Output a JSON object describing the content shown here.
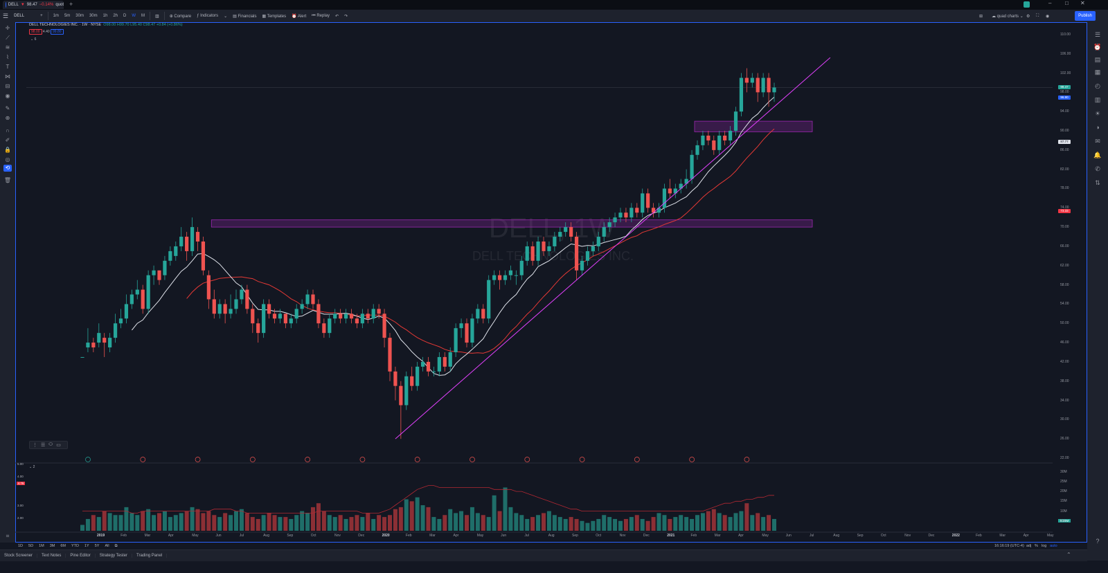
{
  "tab": {
    "symbol": "DELL",
    "price": "98.47",
    "change": "−0.14%",
    "suffix": "quot"
  },
  "toolbar": {
    "symbol": "DELL",
    "intervals": [
      "1m",
      "5m",
      "30m",
      "30m",
      "1h",
      "2h",
      "D",
      "W",
      "M"
    ],
    "compare": "Compare",
    "indicators": "Indicators",
    "financials": "Financials",
    "templates": "Templates",
    "alert": "Alert",
    "replay": "Replay",
    "layout_name": "quad charts",
    "publish": "Publish"
  },
  "legend": {
    "title": "DELL TECHNOLOGIES INC. · 1W · NYSE",
    "ohlc": "O98.00 H99.70 L95.40 C98.47 +0.84 (+0.86%)",
    "box1": "98.00",
    "box_val": "4.40",
    "box2": "99.80"
  },
  "watermark": {
    "symbol": "DELL, 1W",
    "name": "DELL TECHNOLOGIES INC."
  },
  "colors": {
    "up": "#26a69a",
    "down": "#ef5350",
    "accent": "#2962ff",
    "zone": "#9c27b0",
    "ma_fast": "#e0e3eb",
    "ma_slow": "#e53935"
  },
  "price_axis": [
    "110.00",
    "106.00",
    "102.00",
    "98.00",
    "94.00",
    "90.00",
    "86.00",
    "82.00",
    "78.00",
    "74.00",
    "70.00",
    "66.00",
    "62.00",
    "58.00",
    "54.00",
    "50.00",
    "46.00",
    "42.00",
    "38.00",
    "34.00",
    "30.00",
    "26.00",
    "22.00"
  ],
  "price_tags": [
    {
      "label": "98.47",
      "color": "#26a69a"
    },
    {
      "label": "96.90",
      "color": "#2962ff"
    },
    {
      "label": "87.77",
      "color": "#e0e3eb"
    },
    {
      "label": "73.33",
      "color": "#f23645"
    }
  ],
  "time_axis": [
    "2019",
    "Feb",
    "Mar",
    "Apr",
    "May",
    "Jun",
    "Jul",
    "Aug",
    "Sep",
    "Oct",
    "Nov",
    "Dec",
    "2020",
    "Feb",
    "Mar",
    "Apr",
    "May",
    "Jun",
    "Jul",
    "Aug",
    "Sep",
    "Oct",
    "Nov",
    "Dec",
    "2021",
    "Feb",
    "Mar",
    "Apr",
    "May",
    "Jun",
    "Jul",
    "Aug",
    "Sep",
    "Oct",
    "Nov",
    "Dec",
    "2022",
    "Feb",
    "Mar",
    "Apr",
    "May"
  ],
  "volume_axis": [
    "30M",
    "25M",
    "20M",
    "15M",
    "10M",
    "5M"
  ],
  "volume_pane": {
    "legend": "2",
    "scale": [
      "5.00",
      "4.00",
      "3.00",
      "2.00"
    ],
    "tag": "4.76",
    "last": "8.24M"
  },
  "range_bar": {
    "ranges": [
      "1D",
      "5D",
      "1M",
      "3M",
      "6M",
      "YTD",
      "1Y",
      "5Y",
      "All"
    ],
    "time": "16:16:19 (UTC-4)",
    "opts": [
      "adj",
      "%",
      "log",
      "auto"
    ]
  },
  "bottom_tabs": [
    "Stock Screener",
    "Text Notes",
    "Pine Editor",
    "Strategy Tester",
    "Trading Panel"
  ],
  "chart_data": {
    "type": "candlestick",
    "title": "",
    "interval": "1W",
    "ylim": [
      22,
      112
    ],
    "candles": [
      {
        "o": 43,
        "c": 43,
        "h": 43,
        "l": 43
      },
      {
        "o": 45,
        "c": 46,
        "h": 49,
        "l": 44
      },
      {
        "o": 46,
        "c": 45,
        "h": 47,
        "l": 44
      },
      {
        "o": 46,
        "c": 48,
        "h": 50,
        "l": 45
      },
      {
        "o": 47,
        "c": 46,
        "h": 48,
        "l": 43
      },
      {
        "o": 45,
        "c": 47,
        "h": 48,
        "l": 44
      },
      {
        "o": 47,
        "c": 50,
        "h": 52,
        "l": 46
      },
      {
        "o": 50,
        "c": 51,
        "h": 53,
        "l": 49
      },
      {
        "o": 51,
        "c": 54,
        "h": 56,
        "l": 50
      },
      {
        "o": 54,
        "c": 56,
        "h": 57,
        "l": 53
      },
      {
        "o": 56,
        "c": 57,
        "h": 59,
        "l": 55
      },
      {
        "o": 57,
        "c": 53,
        "h": 58,
        "l": 52
      },
      {
        "o": 53,
        "c": 60,
        "h": 61,
        "l": 52
      },
      {
        "o": 60,
        "c": 61,
        "h": 62,
        "l": 58
      },
      {
        "o": 61,
        "c": 59,
        "h": 61,
        "l": 58
      },
      {
        "o": 60,
        "c": 63,
        "h": 64,
        "l": 59
      },
      {
        "o": 63,
        "c": 65,
        "h": 66,
        "l": 62
      },
      {
        "o": 64,
        "c": 66,
        "h": 67,
        "l": 63
      },
      {
        "o": 66,
        "c": 68,
        "h": 70,
        "l": 65
      },
      {
        "o": 68,
        "c": 65,
        "h": 69,
        "l": 63
      },
      {
        "o": 65,
        "c": 70,
        "h": 72,
        "l": 64
      },
      {
        "o": 69,
        "c": 67,
        "h": 70,
        "l": 65
      },
      {
        "o": 67,
        "c": 61,
        "h": 68,
        "l": 60
      },
      {
        "o": 60,
        "c": 55,
        "h": 61,
        "l": 53
      },
      {
        "o": 55,
        "c": 52,
        "h": 57,
        "l": 51
      },
      {
        "o": 52,
        "c": 54,
        "h": 55,
        "l": 51
      },
      {
        "o": 54,
        "c": 52,
        "h": 55,
        "l": 50
      },
      {
        "o": 52,
        "c": 53,
        "h": 56,
        "l": 51
      },
      {
        "o": 53,
        "c": 55,
        "h": 57,
        "l": 52
      },
      {
        "o": 55,
        "c": 57,
        "h": 58,
        "l": 54
      },
      {
        "o": 57,
        "c": 53,
        "h": 58,
        "l": 52
      },
      {
        "o": 53,
        "c": 50,
        "h": 54,
        "l": 48
      },
      {
        "o": 50,
        "c": 48,
        "h": 51,
        "l": 46
      },
      {
        "o": 48,
        "c": 54,
        "h": 55,
        "l": 47
      },
      {
        "o": 54,
        "c": 52,
        "h": 55,
        "l": 51
      },
      {
        "o": 52,
        "c": 51,
        "h": 53,
        "l": 50
      },
      {
        "o": 51,
        "c": 52,
        "h": 53,
        "l": 50
      },
      {
        "o": 52,
        "c": 50,
        "h": 52,
        "l": 49
      },
      {
        "o": 50,
        "c": 51,
        "h": 52,
        "l": 49
      },
      {
        "o": 51,
        "c": 53,
        "h": 54,
        "l": 50
      },
      {
        "o": 53,
        "c": 54,
        "h": 55,
        "l": 52
      },
      {
        "o": 54,
        "c": 56,
        "h": 57,
        "l": 53
      },
      {
        "o": 56,
        "c": 54,
        "h": 57,
        "l": 53
      },
      {
        "o": 54,
        "c": 50,
        "h": 55,
        "l": 49
      },
      {
        "o": 50,
        "c": 48,
        "h": 51,
        "l": 47
      },
      {
        "o": 48,
        "c": 51,
        "h": 52,
        "l": 47
      },
      {
        "o": 51,
        "c": 52,
        "h": 53,
        "l": 50
      },
      {
        "o": 52,
        "c": 51,
        "h": 53,
        "l": 50
      },
      {
        "o": 51,
        "c": 52,
        "h": 53,
        "l": 50
      },
      {
        "o": 52,
        "c": 51,
        "h": 53,
        "l": 50
      },
      {
        "o": 51,
        "c": 50,
        "h": 52,
        "l": 49
      },
      {
        "o": 50,
        "c": 52,
        "h": 53,
        "l": 49
      },
      {
        "o": 52,
        "c": 51,
        "h": 53,
        "l": 50
      },
      {
        "o": 51,
        "c": 53,
        "h": 54,
        "l": 50
      },
      {
        "o": 53,
        "c": 52,
        "h": 54,
        "l": 51
      },
      {
        "o": 52,
        "c": 47,
        "h": 53,
        "l": 45
      },
      {
        "o": 47,
        "c": 40,
        "h": 48,
        "l": 38
      },
      {
        "o": 40,
        "c": 37,
        "h": 41,
        "l": 34
      },
      {
        "o": 37,
        "c": 33,
        "h": 38,
        "l": 26
      },
      {
        "o": 33,
        "c": 39,
        "h": 40,
        "l": 32
      },
      {
        "o": 39,
        "c": 37,
        "h": 41,
        "l": 36
      },
      {
        "o": 37,
        "c": 41,
        "h": 42,
        "l": 36
      },
      {
        "o": 41,
        "c": 42,
        "h": 43,
        "l": 40
      },
      {
        "o": 42,
        "c": 40,
        "h": 43,
        "l": 39
      },
      {
        "o": 40,
        "c": 40,
        "h": 41,
        "l": 39
      },
      {
        "o": 40,
        "c": 43,
        "h": 44,
        "l": 39
      },
      {
        "o": 43,
        "c": 41,
        "h": 44,
        "l": 40
      },
      {
        "o": 41,
        "c": 44,
        "h": 45,
        "l": 40
      },
      {
        "o": 44,
        "c": 49,
        "h": 50,
        "l": 43
      },
      {
        "o": 49,
        "c": 50,
        "h": 51,
        "l": 47
      },
      {
        "o": 50,
        "c": 46,
        "h": 51,
        "l": 45
      },
      {
        "o": 46,
        "c": 51,
        "h": 52,
        "l": 45
      },
      {
        "o": 51,
        "c": 53,
        "h": 54,
        "l": 50
      },
      {
        "o": 53,
        "c": 51,
        "h": 54,
        "l": 50
      },
      {
        "o": 51,
        "c": 59,
        "h": 60,
        "l": 50
      },
      {
        "o": 59,
        "c": 60,
        "h": 61,
        "l": 58
      },
      {
        "o": 60,
        "c": 59,
        "h": 61,
        "l": 57
      },
      {
        "o": 59,
        "c": 60,
        "h": 61,
        "l": 58
      },
      {
        "o": 60,
        "c": 61,
        "h": 62,
        "l": 59
      },
      {
        "o": 60,
        "c": 60,
        "h": 61,
        "l": 58
      },
      {
        "o": 60,
        "c": 63,
        "h": 64,
        "l": 59
      },
      {
        "o": 63,
        "c": 66,
        "h": 67,
        "l": 62
      },
      {
        "o": 66,
        "c": 63,
        "h": 67,
        "l": 62
      },
      {
        "o": 63,
        "c": 67,
        "h": 68,
        "l": 62
      },
      {
        "o": 67,
        "c": 65,
        "h": 68,
        "l": 64
      },
      {
        "o": 65,
        "c": 66,
        "h": 67,
        "l": 64
      },
      {
        "o": 66,
        "c": 68,
        "h": 69,
        "l": 65
      },
      {
        "o": 68,
        "c": 69,
        "h": 70,
        "l": 67
      },
      {
        "o": 69,
        "c": 70,
        "h": 71,
        "l": 68
      },
      {
        "o": 70,
        "c": 68,
        "h": 71,
        "l": 67
      },
      {
        "o": 68,
        "c": 61,
        "h": 69,
        "l": 59
      },
      {
        "o": 61,
        "c": 63,
        "h": 64,
        "l": 60
      },
      {
        "o": 63,
        "c": 65,
        "h": 66,
        "l": 62
      },
      {
        "o": 65,
        "c": 66,
        "h": 67,
        "l": 64
      },
      {
        "o": 66,
        "c": 68,
        "h": 69,
        "l": 65
      },
      {
        "o": 68,
        "c": 70,
        "h": 71,
        "l": 67
      },
      {
        "o": 70,
        "c": 71,
        "h": 72,
        "l": 69
      },
      {
        "o": 71,
        "c": 72,
        "h": 73,
        "l": 70
      },
      {
        "o": 72,
        "c": 73,
        "h": 74,
        "l": 71
      },
      {
        "o": 73,
        "c": 72,
        "h": 74,
        "l": 71
      },
      {
        "o": 72,
        "c": 74,
        "h": 75,
        "l": 71
      },
      {
        "o": 74,
        "c": 73,
        "h": 75,
        "l": 72
      },
      {
        "o": 73,
        "c": 77,
        "h": 78,
        "l": 72
      },
      {
        "o": 77,
        "c": 74,
        "h": 78,
        "l": 73
      },
      {
        "o": 74,
        "c": 73,
        "h": 75,
        "l": 72
      },
      {
        "o": 73,
        "c": 74,
        "h": 75,
        "l": 72
      },
      {
        "o": 74,
        "c": 78,
        "h": 79,
        "l": 73
      },
      {
        "o": 78,
        "c": 77,
        "h": 80,
        "l": 76
      },
      {
        "o": 77,
        "c": 78,
        "h": 79,
        "l": 76
      },
      {
        "o": 78,
        "c": 79,
        "h": 80,
        "l": 77
      },
      {
        "o": 79,
        "c": 80,
        "h": 82,
        "l": 78
      },
      {
        "o": 80,
        "c": 85,
        "h": 86,
        "l": 79
      },
      {
        "o": 85,
        "c": 87,
        "h": 88,
        "l": 84
      },
      {
        "o": 87,
        "c": 89,
        "h": 90,
        "l": 86
      },
      {
        "o": 89,
        "c": 88,
        "h": 90,
        "l": 87
      },
      {
        "o": 88,
        "c": 86,
        "h": 89,
        "l": 85
      },
      {
        "o": 86,
        "c": 89,
        "h": 90,
        "l": 85
      },
      {
        "o": 89,
        "c": 88,
        "h": 90,
        "l": 87
      },
      {
        "o": 88,
        "c": 90,
        "h": 91,
        "l": 87
      },
      {
        "o": 90,
        "c": 94,
        "h": 95,
        "l": 89
      },
      {
        "o": 94,
        "c": 101,
        "h": 102,
        "l": 93
      },
      {
        "o": 101,
        "c": 100,
        "h": 103,
        "l": 98
      },
      {
        "o": 100,
        "c": 101,
        "h": 102,
        "l": 99
      },
      {
        "o": 101,
        "c": 98,
        "h": 102,
        "l": 96
      },
      {
        "o": 98,
        "c": 101,
        "h": 102,
        "l": 97
      },
      {
        "o": 101,
        "c": 98,
        "h": 102,
        "l": 95
      },
      {
        "o": 98,
        "c": 99,
        "h": 100,
        "l": 96
      }
    ],
    "volume_M": [
      3,
      6,
      8,
      7,
      10,
      9,
      8,
      8,
      12,
      9,
      8,
      10,
      11,
      8,
      9,
      10,
      7,
      8,
      9,
      10,
      12,
      11,
      9,
      10,
      8,
      7,
      9,
      8,
      10,
      11,
      9,
      7,
      6,
      8,
      9,
      8,
      7,
      7,
      6,
      8,
      10,
      9,
      12,
      14,
      10,
      8,
      7,
      8,
      6,
      7,
      8,
      7,
      9,
      6,
      8,
      7,
      8,
      11,
      12,
      16,
      15,
      17,
      13,
      12,
      7,
      6,
      8,
      11,
      9,
      10,
      8,
      12,
      9,
      8,
      7,
      18,
      10,
      22,
      12,
      9,
      8,
      6,
      7,
      8,
      9,
      10,
      8,
      7,
      6,
      7,
      6,
      5,
      4,
      5,
      6,
      8,
      7,
      6,
      5,
      6,
      7,
      8,
      6,
      5,
      7,
      9,
      8,
      6,
      7,
      8,
      7,
      6,
      8,
      9,
      10,
      11,
      9,
      8,
      7,
      9,
      10,
      14,
      8,
      9,
      7,
      8,
      6,
      5
    ],
    "volume_avg_line": [
      10,
      10,
      10,
      10,
      10,
      10,
      10,
      10,
      10,
      9,
      9,
      10,
      10,
      10,
      10,
      10,
      10,
      10,
      10,
      10,
      10,
      10,
      10,
      10,
      11,
      11,
      11,
      11,
      10,
      10,
      9,
      9,
      9,
      9,
      9,
      9,
      9,
      9,
      9,
      9,
      9,
      9,
      9,
      10,
      10,
      10,
      10,
      10,
      10,
      10,
      10,
      9,
      9,
      9,
      9,
      10,
      11,
      13,
      15,
      17,
      19,
      21,
      22,
      23,
      23,
      22,
      22,
      22,
      22,
      22,
      22,
      22,
      22,
      22,
      22,
      21,
      21,
      21,
      21,
      20,
      20,
      19,
      18,
      17,
      16,
      15,
      14,
      13,
      12,
      11,
      11,
      10,
      10,
      10,
      10,
      10,
      10,
      10,
      10,
      10,
      10,
      10,
      10,
      10,
      10,
      10,
      10,
      10,
      10,
      10,
      10,
      10,
      10,
      10,
      11,
      12,
      13,
      14,
      14,
      15,
      15,
      16,
      16,
      17,
      17,
      18,
      18,
      17
    ],
    "trendline": [
      [
        57,
        26
      ],
      [
        129,
        98
      ]
    ],
    "zones": [
      {
        "from": 70,
        "to": 71.5,
        "start_bar": 24,
        "end_bar": 132
      },
      {
        "from": 89.8,
        "to": 92,
        "start_bar": 112,
        "end_bar": 132
      }
    ]
  }
}
